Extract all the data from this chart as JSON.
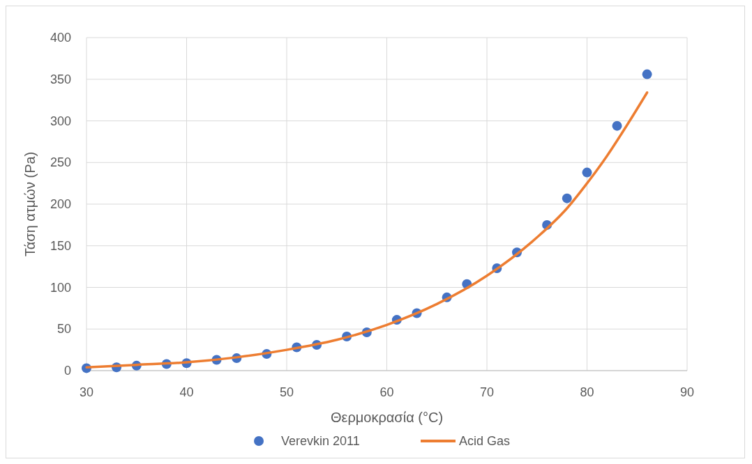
{
  "chart_data": {
    "type": "scatter",
    "xlabel": "Θερμοκρασία (°C)",
    "ylabel": "Τάση ατμών (Pa)",
    "xlim": [
      30,
      90
    ],
    "xticks": [
      30,
      40,
      50,
      60,
      70,
      80,
      90
    ],
    "ylim": [
      0,
      400
    ],
    "yticks": [
      0,
      50,
      100,
      150,
      200,
      250,
      300,
      350,
      400
    ],
    "grid": true,
    "legend": "bottom",
    "series": [
      {
        "name": "Verevkin 2011",
        "marker": "circle",
        "color": "#4472c4",
        "x": [
          30,
          33,
          35,
          38,
          40,
          43,
          45,
          48,
          51,
          53,
          56,
          58,
          61,
          63,
          66,
          68,
          71,
          73,
          76,
          78,
          80,
          83,
          86
        ],
        "values": [
          3,
          4,
          6,
          8,
          9,
          13,
          15,
          20,
          28,
          31,
          41,
          46,
          61,
          69,
          88,
          104,
          123,
          142,
          175,
          207,
          238,
          294,
          356
        ]
      },
      {
        "name": "Acid Gas",
        "type": "line",
        "marker": "none",
        "line_style": "solid",
        "color": "#ed7d31",
        "x": [
          30,
          35,
          40,
          45,
          50,
          55,
          60,
          65,
          70,
          75,
          78,
          80,
          82,
          84,
          86
        ],
        "values": [
          4,
          7,
          10,
          16,
          25,
          37,
          55,
          80,
          114,
          160,
          195,
          225,
          258,
          295,
          334
        ]
      }
    ]
  }
}
